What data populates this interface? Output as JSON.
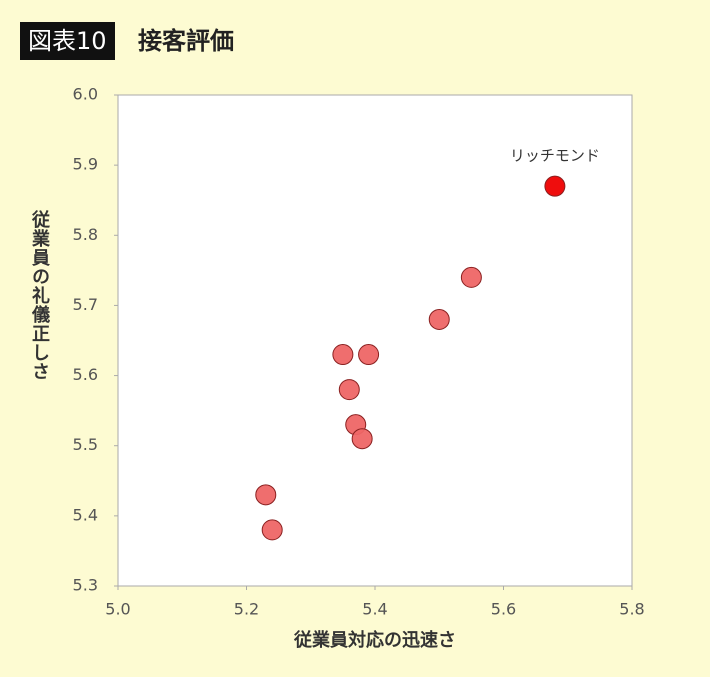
{
  "chart_data": {
    "type": "scatter",
    "figure_label": "図表10",
    "title": "接客評価",
    "x_label": "従業員対応の迅速さ",
    "y_label": "従業員の礼儀正しさ",
    "x": [
      5.68,
      5.55,
      5.5,
      5.35,
      5.39,
      5.36,
      5.37,
      5.38,
      5.23,
      5.24
    ],
    "y": [
      5.87,
      5.74,
      5.68,
      5.63,
      5.63,
      5.58,
      5.53,
      5.51,
      5.43,
      5.38
    ],
    "colors": [
      "#ee0000",
      "#ee6666",
      "#ee6666",
      "#ee6666",
      "#ee6666",
      "#ee6666",
      "#ee6666",
      "#ee6666",
      "#ee6666",
      "#ee6666"
    ],
    "point_labels": [
      "リッチモンド",
      null,
      null,
      null,
      null,
      null,
      null,
      null,
      null,
      null
    ],
    "xlim": [
      5.0,
      5.8
    ],
    "xticks": [
      {
        "value": 5.0,
        "label": "5.0"
      },
      5.2,
      5.4,
      5.6,
      5.8
    ],
    "ylim": [
      5.3,
      6.0
    ],
    "yticks": [
      5.3,
      5.4,
      5.5,
      5.6,
      5.7,
      5.8,
      5.9,
      {
        "value": 6.0,
        "label": "6.0"
      }
    ],
    "grid": false
  }
}
